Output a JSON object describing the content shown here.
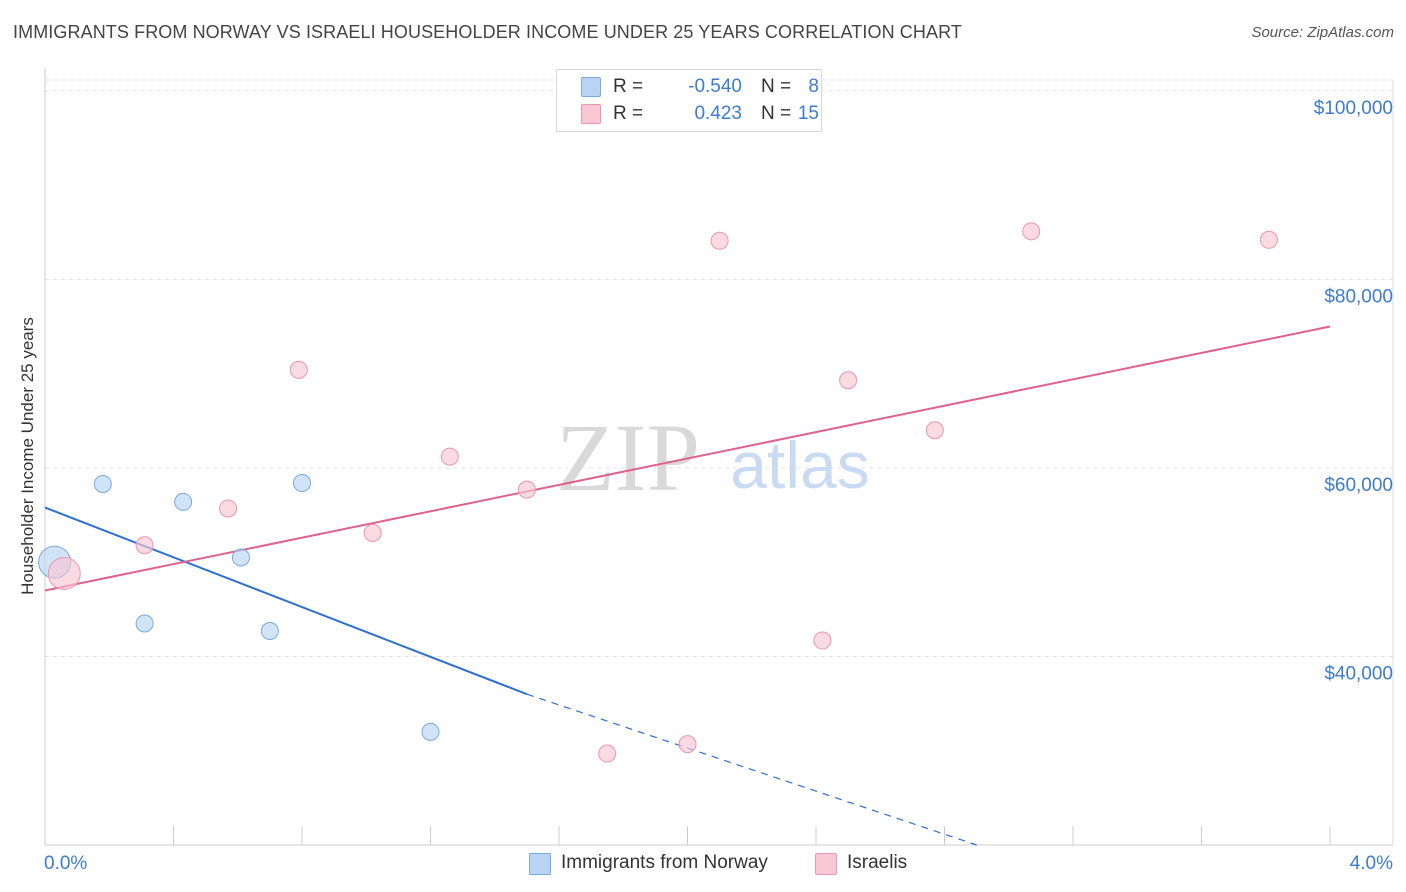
{
  "title": "IMMIGRANTS FROM NORWAY VS ISRAELI HOUSEHOLDER INCOME UNDER 25 YEARS CORRELATION CHART",
  "source": "Source: ZipAtlas.com",
  "watermark": {
    "zip": "ZIP",
    "atlas": "atlas"
  },
  "legend": {
    "norway": {
      "r_label": "R =",
      "r_value": "-0.540",
      "n_label": "N =",
      "n_value": "8"
    },
    "israelis": {
      "r_label": "R =",
      "r_value": "0.423",
      "n_label": "N =",
      "n_value": "15"
    }
  },
  "colors": {
    "norway_fill": "#b9d4f3",
    "norway_stroke": "#7aa9e0",
    "norway_line": "#2f6fd3",
    "israelis_fill": "#f8c6d4",
    "israelis_stroke": "#eb95ae",
    "israelis_line": "#e0628b"
  },
  "chart_data": {
    "type": "scatter",
    "title": "IMMIGRANTS FROM NORWAY VS ISRAELI HOUSEHOLDER INCOME UNDER 25 YEARS CORRELATION CHART",
    "xlabel": "",
    "ylabel": "Householder Income Under 25 years",
    "xlim": [
      0,
      4.0
    ],
    "ylim": [
      20000,
      102000
    ],
    "x_tick_labels": [
      "0.0%",
      "4.0%"
    ],
    "y_ticks": [
      40000,
      60000,
      80000,
      100000
    ],
    "y_tick_labels": [
      "$40,000",
      "$60,000",
      "$80,000",
      "$100,000"
    ],
    "grid": true,
    "legend_position": "top-center",
    "series": [
      {
        "name": "Immigrants from Norway",
        "points": [
          {
            "x": 0.03,
            "y": 50000,
            "big": true
          },
          {
            "x": 0.18,
            "y": 58300
          },
          {
            "x": 0.43,
            "y": 56400
          },
          {
            "x": 0.61,
            "y": 50500
          },
          {
            "x": 0.31,
            "y": 43500
          },
          {
            "x": 0.7,
            "y": 42700
          },
          {
            "x": 0.8,
            "y": 58400
          },
          {
            "x": 1.2,
            "y": 32000
          }
        ],
        "trend": {
          "x_start": 0.0,
          "y_start": 55800,
          "x_solid_end": 1.5,
          "y_solid_end": 36000,
          "x_dash_end": 2.9,
          "y_dash_end": 20000
        }
      },
      {
        "name": "Israelis",
        "points": [
          {
            "x": 0.06,
            "y": 48800,
            "big": true
          },
          {
            "x": 0.31,
            "y": 51800
          },
          {
            "x": 0.57,
            "y": 55700
          },
          {
            "x": 0.79,
            "y": 70400
          },
          {
            "x": 1.02,
            "y": 53100
          },
          {
            "x": 1.26,
            "y": 61200
          },
          {
            "x": 1.5,
            "y": 57700
          },
          {
            "x": 1.75,
            "y": 29700
          },
          {
            "x": 2.0,
            "y": 30700
          },
          {
            "x": 2.1,
            "y": 84100
          },
          {
            "x": 2.42,
            "y": 41700
          },
          {
            "x": 2.5,
            "y": 69300
          },
          {
            "x": 2.77,
            "y": 64000
          },
          {
            "x": 3.07,
            "y": 85100
          },
          {
            "x": 3.81,
            "y": 84200
          }
        ],
        "trend": {
          "x_start": 0.0,
          "y_start": 47000,
          "x_end": 4.0,
          "y_end": 75000
        }
      }
    ]
  }
}
